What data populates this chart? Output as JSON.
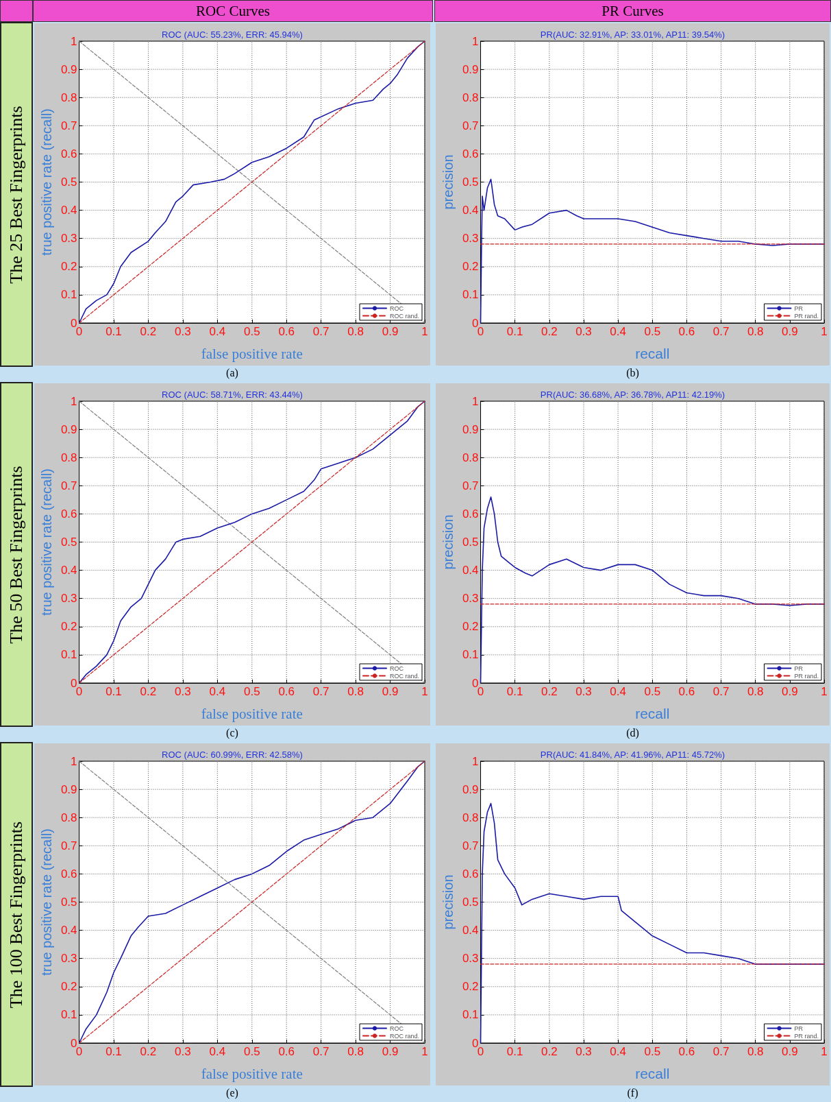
{
  "chart_data": [
    {
      "type": "line",
      "title": "ROC (AUC: 55.23%, ERR: 45.94%)",
      "xlabel": "false positive rate",
      "ylabel": "true positive rate (recall)",
      "annotations": [
        "(a)",
        "The 25 Best Fingerprints",
        "ROC Curves"
      ],
      "xlim": [
        0,
        1
      ],
      "ylim": [
        0,
        1
      ],
      "xticks": [
        0,
        0.1,
        0.2,
        0.3,
        0.4,
        0.5,
        0.6,
        0.7,
        0.8,
        0.9,
        1
      ],
      "yticks": [
        0,
        0.1,
        0.2,
        0.3,
        0.4,
        0.5,
        0.6,
        0.7,
        0.8,
        0.9,
        1
      ],
      "grid": true,
      "legend": "bottom right",
      "marker": "none",
      "series": [
        {
          "color": "#808080",
          "line_style": "dashed",
          "x": [
            0,
            1
          ],
          "values": [
            1,
            0
          ]
        },
        {
          "name": "ROC",
          "color": "#1a1aa6",
          "line_style": "solid",
          "x": [
            0,
            0.02,
            0.05,
            0.08,
            0.1,
            0.12,
            0.15,
            0.2,
            0.22,
            0.25,
            0.28,
            0.3,
            0.33,
            0.38,
            0.42,
            0.45,
            0.5,
            0.55,
            0.6,
            0.65,
            0.68,
            0.75,
            0.8,
            0.85,
            0.88,
            0.9,
            0.92,
            0.95,
            0.98,
            1
          ],
          "values": [
            0,
            0.05,
            0.08,
            0.1,
            0.14,
            0.2,
            0.25,
            0.29,
            0.32,
            0.36,
            0.43,
            0.45,
            0.49,
            0.5,
            0.51,
            0.53,
            0.57,
            0.59,
            0.62,
            0.66,
            0.72,
            0.76,
            0.78,
            0.79,
            0.83,
            0.85,
            0.88,
            0.94,
            0.98,
            1
          ]
        },
        {
          "name": "ROC rand.",
          "color": "#cc2222",
          "line_style": "dashed",
          "x": [
            0,
            1
          ],
          "values": [
            0,
            1
          ]
        }
      ]
    },
    {
      "type": "line",
      "title": "PR(AUC: 32.91%, AP: 33.01%, AP11: 39.54%)",
      "xlabel": "recall",
      "ylabel": "precision",
      "annotations": [
        "(b)",
        "PR Curves"
      ],
      "xlim": [
        0,
        1
      ],
      "ylim": [
        0,
        1
      ],
      "xticks": [
        0,
        0.1,
        0.2,
        0.3,
        0.4,
        0.5,
        0.6,
        0.7,
        0.8,
        0.9,
        1
      ],
      "yticks": [
        0,
        0.1,
        0.2,
        0.3,
        0.4,
        0.5,
        0.6,
        0.7,
        0.8,
        0.9,
        1
      ],
      "grid": true,
      "legend": "bottom right",
      "marker": "none",
      "series": [
        {
          "name": "PR",
          "color": "#1a1aa6",
          "line_style": "solid",
          "x": [
            0,
            0.003,
            0.005,
            0.01,
            0.02,
            0.03,
            0.04,
            0.05,
            0.07,
            0.1,
            0.12,
            0.15,
            0.2,
            0.25,
            0.28,
            0.3,
            0.35,
            0.4,
            0.45,
            0.5,
            0.55,
            0.6,
            0.65,
            0.7,
            0.75,
            0.8,
            0.85,
            0.9,
            0.95,
            1
          ],
          "values": [
            0,
            0.3,
            0.45,
            0.4,
            0.48,
            0.51,
            0.42,
            0.38,
            0.37,
            0.33,
            0.34,
            0.35,
            0.39,
            0.4,
            0.38,
            0.37,
            0.37,
            0.37,
            0.36,
            0.34,
            0.32,
            0.31,
            0.3,
            0.29,
            0.29,
            0.28,
            0.275,
            0.28,
            0.28,
            0.28
          ]
        },
        {
          "name": "PR rand.",
          "color": "#cc2222",
          "line_style": "dashed",
          "x": [
            0,
            1
          ],
          "values": [
            0.28,
            0.28
          ]
        }
      ]
    },
    {
      "type": "line",
      "title": "ROC (AUC: 58.71%, ERR: 43.44%)",
      "xlabel": "false positive rate",
      "ylabel": "true positive rate (recall)",
      "annotations": [
        "(c)",
        "The 50 Best Fingerprints"
      ],
      "xlim": [
        0,
        1
      ],
      "ylim": [
        0,
        1
      ],
      "xticks": [
        0,
        0.1,
        0.2,
        0.3,
        0.4,
        0.5,
        0.6,
        0.7,
        0.8,
        0.9,
        1
      ],
      "yticks": [
        0,
        0.1,
        0.2,
        0.3,
        0.4,
        0.5,
        0.6,
        0.7,
        0.8,
        0.9,
        1
      ],
      "grid": true,
      "legend": "bottom right",
      "marker": "none",
      "series": [
        {
          "color": "#808080",
          "line_style": "dashed",
          "x": [
            0,
            1
          ],
          "values": [
            1,
            0
          ]
        },
        {
          "name": "ROC",
          "color": "#1a1aa6",
          "line_style": "solid",
          "x": [
            0,
            0.02,
            0.05,
            0.08,
            0.1,
            0.12,
            0.15,
            0.18,
            0.2,
            0.22,
            0.25,
            0.28,
            0.3,
            0.35,
            0.4,
            0.45,
            0.5,
            0.55,
            0.6,
            0.65,
            0.68,
            0.7,
            0.75,
            0.8,
            0.85,
            0.9,
            0.95,
            0.98,
            1
          ],
          "values": [
            0,
            0.03,
            0.06,
            0.1,
            0.15,
            0.22,
            0.27,
            0.3,
            0.35,
            0.4,
            0.44,
            0.5,
            0.51,
            0.52,
            0.55,
            0.57,
            0.6,
            0.62,
            0.65,
            0.68,
            0.72,
            0.76,
            0.78,
            0.8,
            0.83,
            0.88,
            0.93,
            0.98,
            1
          ]
        },
        {
          "name": "ROC rand.",
          "color": "#cc2222",
          "line_style": "dashed",
          "x": [
            0,
            1
          ],
          "values": [
            0,
            1
          ]
        }
      ]
    },
    {
      "type": "line",
      "title": "PR(AUC: 36.68%, AP: 36.78%, AP11: 42.19%)",
      "xlabel": "recall",
      "ylabel": "precision",
      "annotations": [
        "(d)"
      ],
      "xlim": [
        0,
        1
      ],
      "ylim": [
        0,
        1
      ],
      "xticks": [
        0,
        0.1,
        0.2,
        0.3,
        0.4,
        0.5,
        0.6,
        0.7,
        0.8,
        0.9,
        1
      ],
      "yticks": [
        0,
        0.1,
        0.2,
        0.3,
        0.4,
        0.5,
        0.6,
        0.7,
        0.8,
        0.9,
        1
      ],
      "grid": true,
      "legend": "bottom right",
      "marker": "none",
      "series": [
        {
          "name": "PR",
          "color": "#1a1aa6",
          "line_style": "solid",
          "x": [
            0,
            0.005,
            0.01,
            0.02,
            0.03,
            0.04,
            0.05,
            0.06,
            0.08,
            0.1,
            0.13,
            0.15,
            0.2,
            0.25,
            0.3,
            0.35,
            0.4,
            0.45,
            0.5,
            0.55,
            0.6,
            0.65,
            0.7,
            0.75,
            0.8,
            0.85,
            0.9,
            0.95,
            1
          ],
          "values": [
            0,
            0.4,
            0.55,
            0.62,
            0.66,
            0.6,
            0.5,
            0.45,
            0.43,
            0.41,
            0.39,
            0.38,
            0.42,
            0.44,
            0.41,
            0.4,
            0.42,
            0.42,
            0.4,
            0.35,
            0.32,
            0.31,
            0.31,
            0.3,
            0.28,
            0.28,
            0.275,
            0.28,
            0.28
          ]
        },
        {
          "name": "PR rand.",
          "color": "#cc2222",
          "line_style": "dashed",
          "x": [
            0,
            1
          ],
          "values": [
            0.28,
            0.28
          ]
        }
      ]
    },
    {
      "type": "line",
      "title": "ROC (AUC: 60.99%, ERR: 42.58%)",
      "xlabel": "false positive rate",
      "ylabel": "true positive rate (recall)",
      "annotations": [
        "(e)",
        "The 100 Best Fingerprints"
      ],
      "xlim": [
        0,
        1
      ],
      "ylim": [
        0,
        1
      ],
      "xticks": [
        0,
        0.1,
        0.2,
        0.3,
        0.4,
        0.5,
        0.6,
        0.7,
        0.8,
        0.9,
        1
      ],
      "yticks": [
        0,
        0.1,
        0.2,
        0.3,
        0.4,
        0.5,
        0.6,
        0.7,
        0.8,
        0.9,
        1
      ],
      "grid": true,
      "legend": "bottom right",
      "marker": "none",
      "series": [
        {
          "color": "#808080",
          "line_style": "dashed",
          "x": [
            0,
            1
          ],
          "values": [
            1,
            0
          ]
        },
        {
          "name": "ROC",
          "color": "#1a1aa6",
          "line_style": "solid",
          "x": [
            0,
            0.02,
            0.05,
            0.08,
            0.1,
            0.12,
            0.15,
            0.17,
            0.2,
            0.25,
            0.3,
            0.35,
            0.4,
            0.45,
            0.5,
            0.55,
            0.6,
            0.65,
            0.7,
            0.75,
            0.8,
            0.85,
            0.9,
            0.95,
            0.98,
            1
          ],
          "values": [
            0,
            0.05,
            0.1,
            0.18,
            0.25,
            0.3,
            0.38,
            0.41,
            0.45,
            0.46,
            0.49,
            0.52,
            0.55,
            0.58,
            0.6,
            0.63,
            0.68,
            0.72,
            0.74,
            0.76,
            0.79,
            0.8,
            0.85,
            0.93,
            0.98,
            1
          ]
        },
        {
          "name": "ROC rand.",
          "color": "#cc2222",
          "line_style": "dashed",
          "x": [
            0,
            1
          ],
          "values": [
            0,
            1
          ]
        }
      ]
    },
    {
      "type": "line",
      "title": "PR(AUC: 41.84%, AP: 41.96%, AP11: 45.72%)",
      "xlabel": "recall",
      "ylabel": "precision",
      "annotations": [
        "(f)"
      ],
      "xlim": [
        0,
        1
      ],
      "ylim": [
        0,
        1
      ],
      "xticks": [
        0,
        0.1,
        0.2,
        0.3,
        0.4,
        0.5,
        0.6,
        0.7,
        0.8,
        0.9,
        1
      ],
      "yticks": [
        0,
        0.1,
        0.2,
        0.3,
        0.4,
        0.5,
        0.6,
        0.7,
        0.8,
        0.9,
        1
      ],
      "grid": true,
      "legend": "bottom right",
      "marker": "none",
      "series": [
        {
          "name": "PR",
          "color": "#1a1aa6",
          "line_style": "solid",
          "x": [
            0,
            0.005,
            0.01,
            0.02,
            0.03,
            0.04,
            0.05,
            0.07,
            0.1,
            0.12,
            0.15,
            0.2,
            0.25,
            0.3,
            0.35,
            0.4,
            0.41,
            0.45,
            0.5,
            0.55,
            0.6,
            0.65,
            0.7,
            0.75,
            0.8,
            0.85,
            0.9,
            0.95,
            1
          ],
          "values": [
            0,
            0.6,
            0.75,
            0.82,
            0.85,
            0.78,
            0.65,
            0.6,
            0.55,
            0.49,
            0.51,
            0.53,
            0.52,
            0.51,
            0.52,
            0.52,
            0.47,
            0.43,
            0.38,
            0.35,
            0.32,
            0.32,
            0.31,
            0.3,
            0.28,
            0.28,
            0.28,
            0.28,
            0.28
          ]
        },
        {
          "name": "PR rand.",
          "color": "#cc2222",
          "line_style": "dashed",
          "x": [
            0,
            1
          ],
          "values": [
            0.28,
            0.28
          ]
        }
      ]
    }
  ]
}
